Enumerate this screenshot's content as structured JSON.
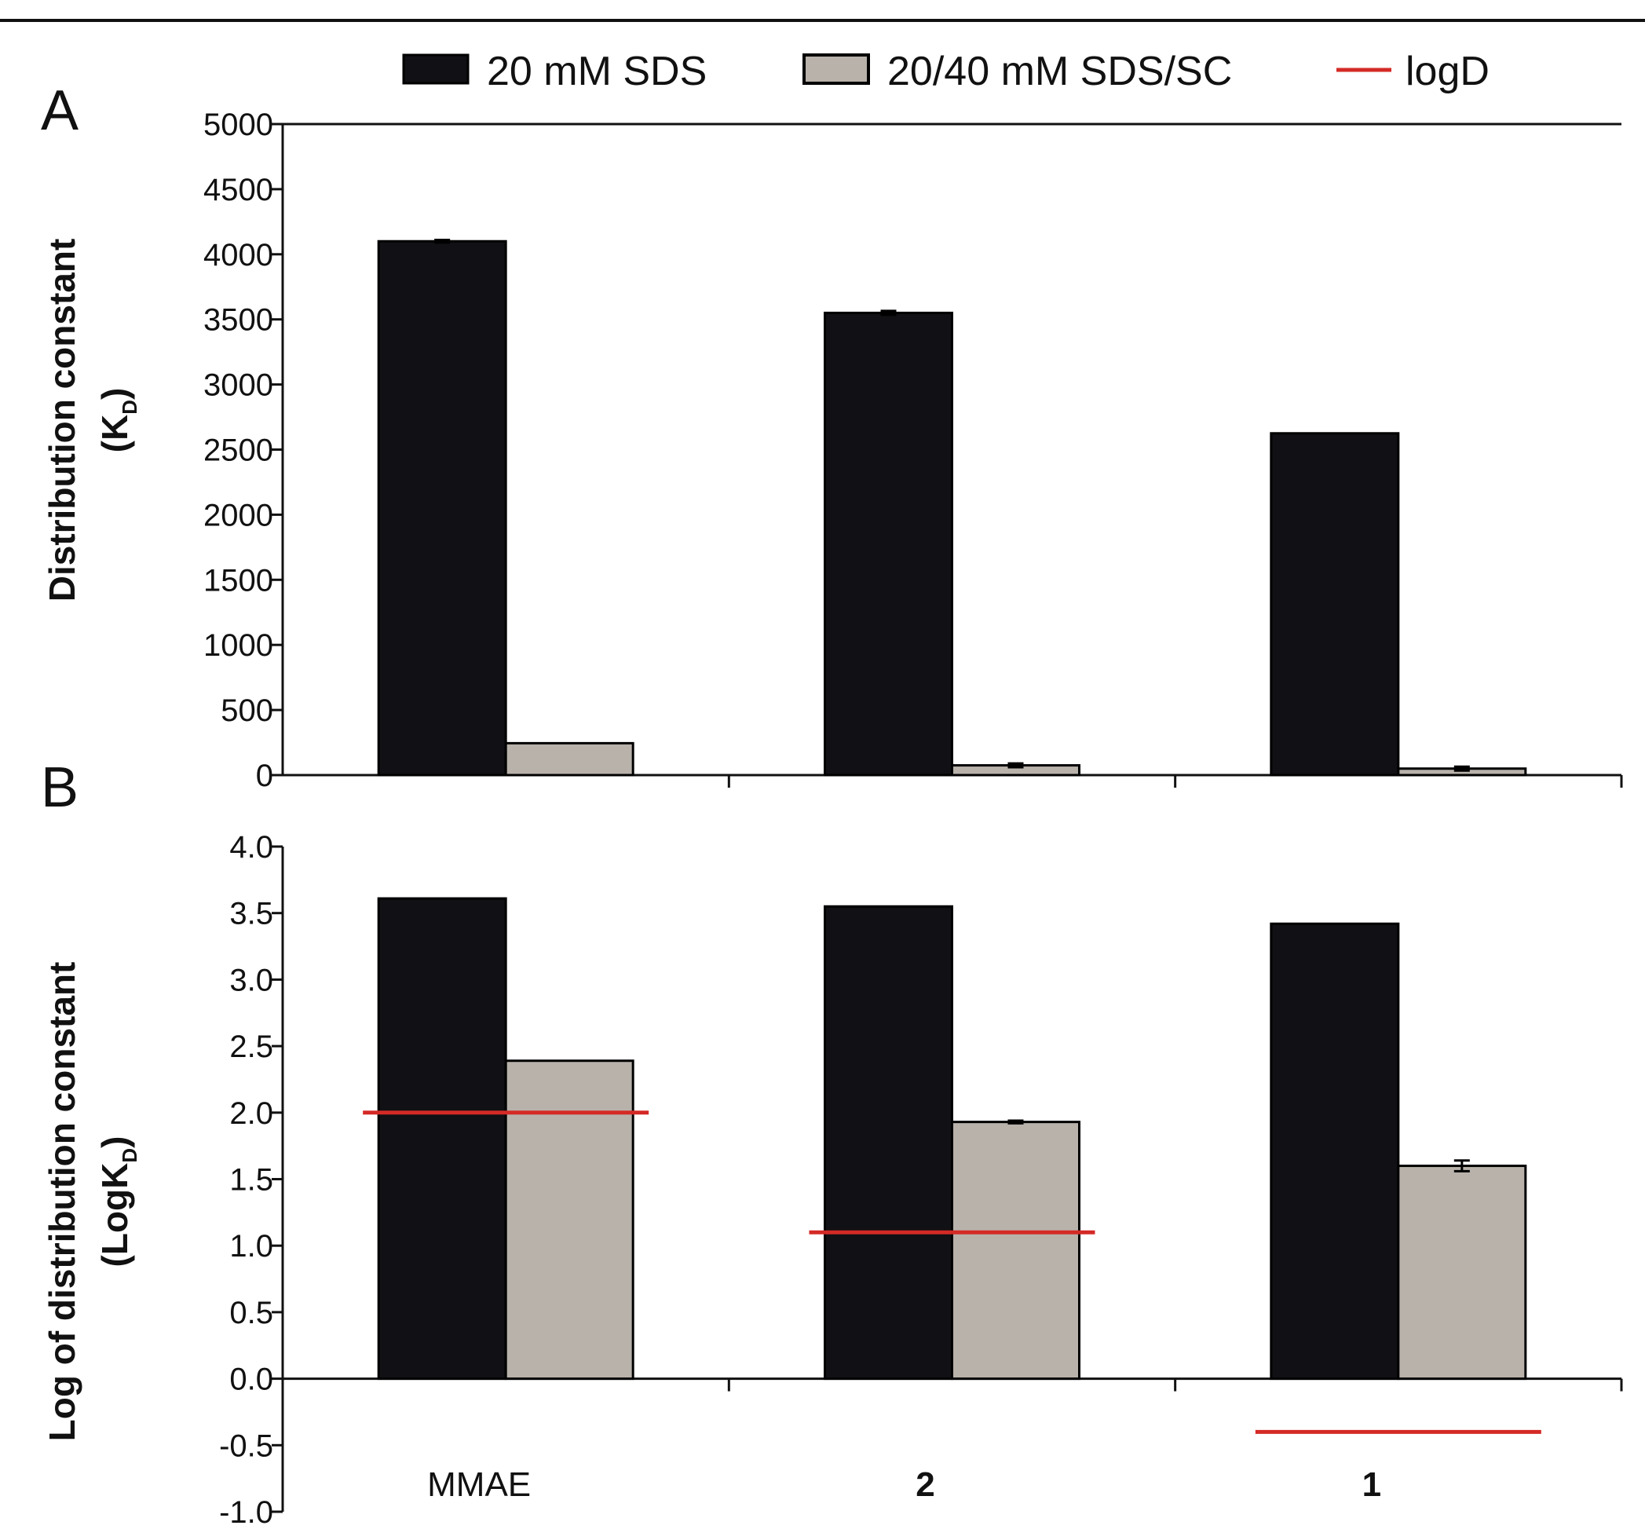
{
  "chart_data": [
    {
      "panel": "A",
      "type": "bar",
      "categories": [
        "MMAE",
        "2",
        "1"
      ],
      "category_bold": [
        false,
        true,
        true
      ],
      "series": [
        {
          "name": "20 mM SDS",
          "values": [
            4100,
            3550,
            2625
          ],
          "errors": [
            10,
            15,
            0
          ],
          "color": "#111014"
        },
        {
          "name": "20/40 mM SDS/SC",
          "values": [
            245,
            75,
            50
          ],
          "errors": [
            0,
            15,
            15
          ],
          "color": "#b8b2ab"
        }
      ],
      "ylabel_line1": "Distribution constant",
      "ylabel_line2": "(K",
      "ylabel_sub": "D",
      "ylabel_close": ")",
      "ylim": [
        0,
        5000
      ],
      "yticks": [
        0,
        500,
        1000,
        1500,
        2000,
        2500,
        3000,
        3500,
        4000,
        4500,
        5000
      ],
      "ytick_labels": [
        "0",
        "500",
        "1000",
        "1500",
        "2000",
        "2500",
        "3000",
        "3500",
        "4000",
        "4500",
        "5000"
      ]
    },
    {
      "panel": "B",
      "type": "bar",
      "categories": [
        "MMAE",
        "2",
        "1"
      ],
      "category_bold": [
        false,
        true,
        true
      ],
      "series": [
        {
          "name": "20 mM SDS",
          "values": [
            3.61,
            3.55,
            3.42
          ],
          "errors": [
            0,
            0,
            0
          ],
          "color": "#111014"
        },
        {
          "name": "20/40 mM SDS/SC",
          "values": [
            2.39,
            1.93,
            1.6
          ],
          "errors": [
            0,
            0.01,
            0.04
          ],
          "color": "#b8b2ab"
        }
      ],
      "reference_lines": [
        {
          "name": "logD",
          "category": "MMAE",
          "value": 2.0
        },
        {
          "name": "logD",
          "category": "2",
          "value": 1.1
        },
        {
          "name": "logD",
          "category": "1",
          "value": -0.4
        }
      ],
      "ylabel_line1": "Log of distribution constant",
      "ylabel_line2": "(LogK",
      "ylabel_sub": "D",
      "ylabel_close": ")",
      "ylim": [
        -1.0,
        4.0
      ],
      "yticks": [
        -1.0,
        -0.5,
        0.0,
        0.5,
        1.0,
        1.5,
        2.0,
        2.5,
        3.0,
        3.5,
        4.0
      ],
      "ytick_labels": [
        "-1.0",
        "-0.5",
        "0.0",
        "0.5",
        "1.0",
        "1.5",
        "2.0",
        "2.5",
        "3.0",
        "3.5",
        "4.0"
      ]
    }
  ],
  "legend": {
    "items": [
      {
        "label": "20 mM SDS",
        "kind": "box",
        "color": "#111014"
      },
      {
        "label": "20/40 mM SDS/SC",
        "kind": "box",
        "color": "#b8b2ab"
      },
      {
        "label": "logD",
        "kind": "line",
        "color": "#d42a26"
      }
    ]
  },
  "panels": {
    "a_label": "A",
    "b_label": "B"
  },
  "colors": {
    "line": "#d42a26",
    "axis": "#111111"
  }
}
